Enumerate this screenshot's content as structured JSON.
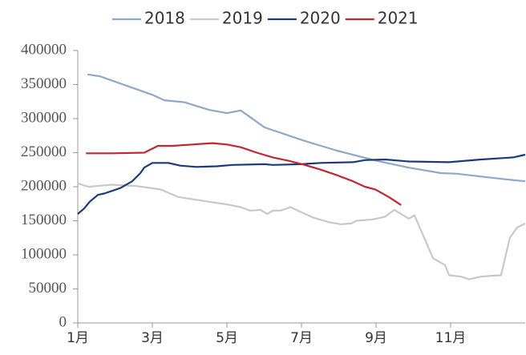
{
  "chart_data": {
    "type": "line",
    "xlim": [
      1,
      13
    ],
    "xticks": [
      {
        "value": 1,
        "label": "1月"
      },
      {
        "value": 3,
        "label": "3月"
      },
      {
        "value": 5,
        "label": "5月"
      },
      {
        "value": 7,
        "label": "7月"
      },
      {
        "value": 9,
        "label": "9月"
      },
      {
        "value": 11,
        "label": "11月"
      }
    ],
    "ylim": [
      0,
      400000
    ],
    "yticks": [
      0,
      50000,
      100000,
      150000,
      200000,
      250000,
      300000,
      350000,
      400000
    ],
    "legend": "top",
    "series": [
      {
        "name": "2018",
        "color": "#8ea8c8",
        "x": [
          1.26,
          1.6,
          3.0,
          3.32,
          3.86,
          4.51,
          5.0,
          5.37,
          6.01,
          7.04,
          7.95,
          9.02,
          9.88,
          10.74,
          11.17,
          11.82,
          12.46,
          13
        ],
        "values": [
          365000,
          362000,
          335000,
          327000,
          324000,
          313000,
          308000,
          312000,
          287000,
          268000,
          253000,
          238000,
          228000,
          220000,
          219000,
          215000,
          211000,
          208000
        ]
      },
      {
        "name": "2019",
        "color": "#c8c8c8",
        "x": [
          1,
          1.28,
          1.92,
          2.57,
          3.22,
          3.69,
          4.51,
          5,
          5.37,
          5.62,
          5.9,
          6.08,
          6.23,
          6.44,
          6.7,
          7.3,
          7.73,
          8.05,
          8.33,
          8.48,
          8.91,
          9.24,
          9.49,
          9.88,
          10.03,
          10.53,
          10.85,
          10.96,
          11.28,
          11.49,
          11.82,
          12.03,
          12.35,
          12.59,
          12.78,
          13
        ],
        "values": [
          205000,
          200000,
          203000,
          201000,
          196000,
          185000,
          178000,
          174000,
          170000,
          165000,
          166000,
          160000,
          165000,
          165000,
          170000,
          155000,
          148000,
          145000,
          146000,
          150000,
          152000,
          156000,
          166000,
          153000,
          158000,
          95000,
          85000,
          70000,
          68000,
          64000,
          68000,
          69000,
          70000,
          125000,
          140000,
          146000
        ]
      },
      {
        "name": "2020",
        "color": "#1b3a7e",
        "x": [
          1,
          1.17,
          1.32,
          1.54,
          1.71,
          2.14,
          2.46,
          2.68,
          2.78,
          3,
          3.43,
          3.75,
          4.18,
          4.72,
          5.15,
          6.01,
          6.23,
          6.98,
          7.52,
          8.38,
          8.7,
          9.24,
          9.88,
          10.96,
          11.82,
          12.68,
          13
        ],
        "values": [
          160000,
          168000,
          178000,
          188000,
          190000,
          198000,
          208000,
          220000,
          228000,
          235000,
          235000,
          231000,
          229000,
          230000,
          232000,
          233000,
          232000,
          233000,
          235000,
          236000,
          239000,
          240000,
          237000,
          236000,
          240000,
          243000,
          247000
        ]
      },
      {
        "name": "2021",
        "color": "#c0282d",
        "x": [
          1.22,
          1.92,
          2.78,
          3.15,
          3.54,
          4.08,
          4.61,
          5,
          5.37,
          5.8,
          6.23,
          6.66,
          7.09,
          7.52,
          7.95,
          8.38,
          8.7,
          8.98,
          9.34,
          9.67
        ],
        "values": [
          249000,
          249000,
          250000,
          260000,
          260000,
          262000,
          264000,
          262000,
          258000,
          250000,
          243000,
          238000,
          232000,
          225000,
          217000,
          208000,
          200000,
          196000,
          185000,
          173000
        ]
      }
    ]
  }
}
